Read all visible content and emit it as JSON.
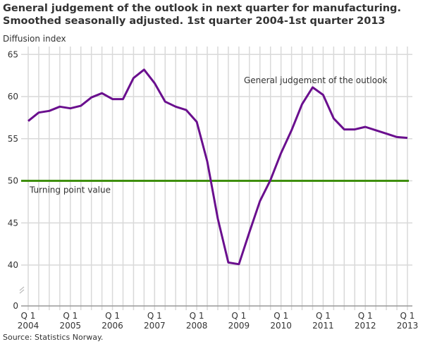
{
  "title_line1": "General judgement of the outlook in next quarter for manufacturing.",
  "title_line2": "Smoothed seasonally adjusted. 1st quarter 2004-1st quarter 2013",
  "source": "Source: Statistics Norway.",
  "chart_data": {
    "type": "line",
    "ylabel": "Diffusion index",
    "yticks": [
      0,
      40,
      45,
      50,
      55,
      60,
      65
    ],
    "ylim": [
      0,
      65
    ],
    "y_axis_break": [
      0,
      40
    ],
    "grid": true,
    "xtick_labels": [
      {
        "q": "Q 1",
        "year": "2004"
      },
      {
        "q": "Q 1",
        "year": "2005"
      },
      {
        "q": "Q 1",
        "year": "2006"
      },
      {
        "q": "Q 1",
        "year": "2007"
      },
      {
        "q": "Q 1",
        "year": "2008"
      },
      {
        "q": "Q 1",
        "year": "2009"
      },
      {
        "q": "Q 1",
        "year": "2010"
      },
      {
        "q": "Q 1",
        "year": "2011"
      },
      {
        "q": "Q 1",
        "year": "2012"
      },
      {
        "q": "Q 1",
        "year": "2013"
      }
    ],
    "series": [
      {
        "name": "General judgement of the outlook",
        "color": "#6a0f8e",
        "start": "2004Q1",
        "values": [
          57.1,
          58.1,
          58.3,
          58.8,
          58.6,
          58.9,
          59.9,
          60.4,
          59.7,
          59.7,
          62.2,
          63.2,
          61.6,
          59.4,
          58.8,
          58.4,
          57.0,
          52.3,
          45.5,
          40.3,
          40.1,
          43.9,
          47.6,
          50.1,
          53.3,
          56.0,
          59.1,
          61.1,
          60.2,
          57.4,
          56.1,
          56.1,
          56.4,
          56.0,
          55.6,
          55.2,
          55.1
        ]
      }
    ],
    "reference_line": {
      "name": "Turning point value",
      "value": 50,
      "color": "#3f8f0f"
    }
  }
}
